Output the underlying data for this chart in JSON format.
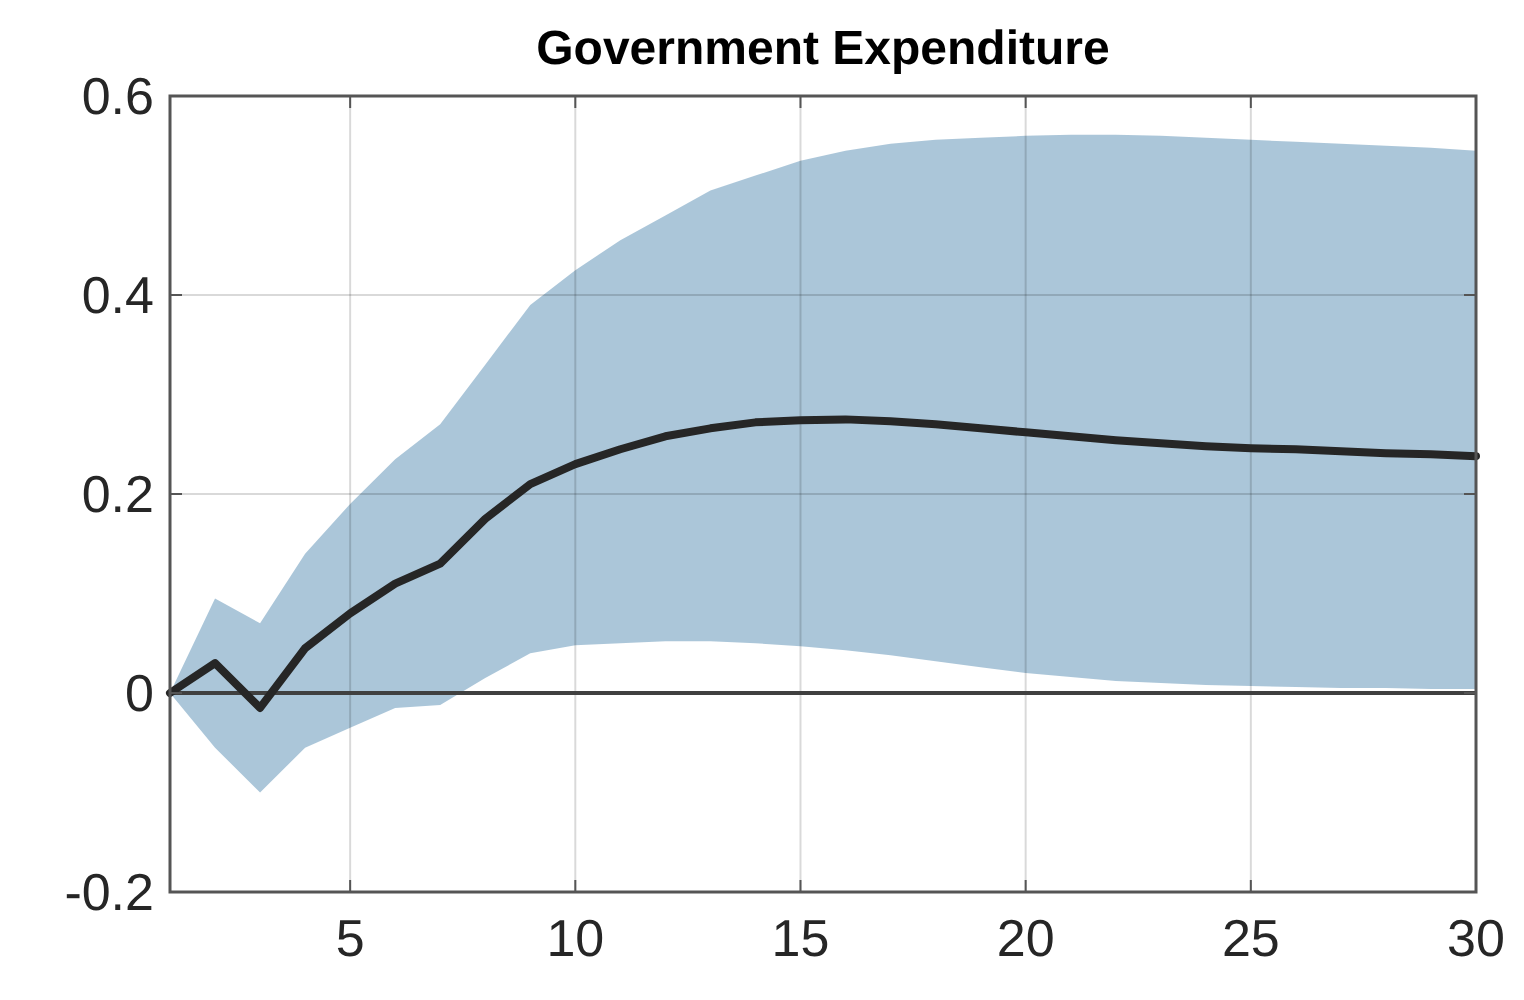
{
  "chart_data": {
    "type": "line",
    "title": "Government Expenditure",
    "x": [
      1,
      2,
      3,
      4,
      5,
      6,
      7,
      8,
      9,
      10,
      11,
      12,
      13,
      14,
      15,
      16,
      17,
      18,
      19,
      20,
      21,
      22,
      23,
      24,
      25,
      26,
      27,
      28,
      29,
      30
    ],
    "series": [
      {
        "color": "#262626",
        "values": [
          0,
          0.03,
          -0.015,
          0.045,
          0.08,
          0.11,
          0.13,
          0.175,
          0.21,
          0.23,
          0.245,
          0.258,
          0.266,
          0.272,
          0.274,
          0.275,
          0.273,
          0.27,
          0.266,
          0.262,
          0.258,
          0.254,
          0.251,
          0.248,
          0.246,
          0.245,
          0.243,
          0.241,
          0.24,
          0.238
        ],
        "upper": [
          0,
          0.095,
          0.07,
          0.14,
          0.19,
          0.235,
          0.27,
          0.33,
          0.39,
          0.425,
          0.455,
          0.48,
          0.505,
          0.52,
          0.535,
          0.545,
          0.552,
          0.556,
          0.558,
          0.56,
          0.561,
          0.561,
          0.56,
          0.558,
          0.556,
          0.554,
          0.552,
          0.55,
          0.548,
          0.545
        ],
        "lower": [
          0,
          -0.055,
          -0.1,
          -0.055,
          -0.035,
          -0.015,
          -0.012,
          0.015,
          0.04,
          0.048,
          0.05,
          0.052,
          0.052,
          0.05,
          0.047,
          0.043,
          0.038,
          0.032,
          0.026,
          0.02,
          0.016,
          0.012,
          0.01,
          0.008,
          0.007,
          0.006,
          0.005,
          0.005,
          0.004,
          0.004
        ]
      }
    ],
    "xlim": [
      1,
      30
    ],
    "xticks": [
      5,
      10,
      15,
      20,
      25,
      30
    ],
    "ylim": [
      -0.2,
      0.6
    ],
    "yticks": [
      {
        "value": -0.2,
        "label": "-0.2"
      },
      {
        "value": 0,
        "label": "0"
      },
      {
        "value": 0.2,
        "label": "0.2"
      },
      {
        "value": 0.4,
        "label": "0.4"
      },
      {
        "value": 0.6,
        "label": "0.6"
      }
    ],
    "grid": true,
    "marker": "none",
    "line_style": "solid",
    "ref_lines": [
      {
        "axis": "y",
        "value": 0,
        "color": "#404040"
      }
    ]
  }
}
